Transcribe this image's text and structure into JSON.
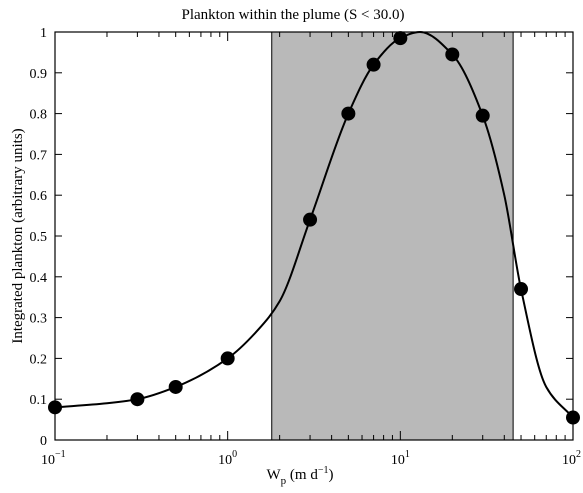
{
  "chart_data": {
    "type": "scatter",
    "title": "Plankton within the plume (S < 30.0)",
    "xlabel": {
      "base": "W",
      "sub": "p",
      "unit_open": " (m d",
      "unit_sup": "−1",
      "unit_close": ")"
    },
    "ylabel": "Integrated plankton (arbitrary units)",
    "xscale": "log",
    "xlim": [
      0.1,
      100
    ],
    "ylim": [
      0,
      1
    ],
    "x_ticks": [
      {
        "value": 0.1,
        "base": "10",
        "exp": "−1"
      },
      {
        "value": 1,
        "base": "10",
        "exp": "0"
      },
      {
        "value": 10,
        "base": "10",
        "exp": "1"
      },
      {
        "value": 100,
        "base": "10",
        "exp": "2"
      }
    ],
    "y_ticks": [
      0,
      0.1,
      0.2,
      0.3,
      0.4,
      0.5,
      0.6,
      0.7,
      0.8,
      0.9,
      1
    ],
    "y_tick_labels": [
      "0",
      "0.1",
      "0.2",
      "0.3",
      "0.4",
      "0.5",
      "0.6",
      "0.7",
      "0.8",
      "0.9",
      "1"
    ],
    "shaded_region": {
      "x": [
        1.8,
        45
      ],
      "color": "#b9b9b9"
    },
    "series": [
      {
        "type": "scatter",
        "marker_color": "#000000",
        "x": [
          0.1,
          0.3,
          0.5,
          1,
          3,
          5,
          7,
          10,
          20,
          30,
          50,
          100
        ],
        "y": [
          0.08,
          0.1,
          0.13,
          0.2,
          0.54,
          0.8,
          0.92,
          0.985,
          0.945,
          0.795,
          0.37,
          0.055
        ]
      },
      {
        "type": "line",
        "line_color": "#000000",
        "x": [
          0.1,
          0.2,
          0.3,
          0.5,
          1,
          1.5,
          2,
          3,
          5,
          7,
          10,
          13,
          20,
          30,
          40,
          50,
          70,
          100
        ],
        "y": [
          0.08,
          0.09,
          0.1,
          0.13,
          0.2,
          0.27,
          0.34,
          0.54,
          0.8,
          0.92,
          0.985,
          1.0,
          0.945,
          0.795,
          0.6,
          0.37,
          0.13,
          0.055
        ]
      }
    ],
    "grid": false,
    "legend": "none"
  }
}
